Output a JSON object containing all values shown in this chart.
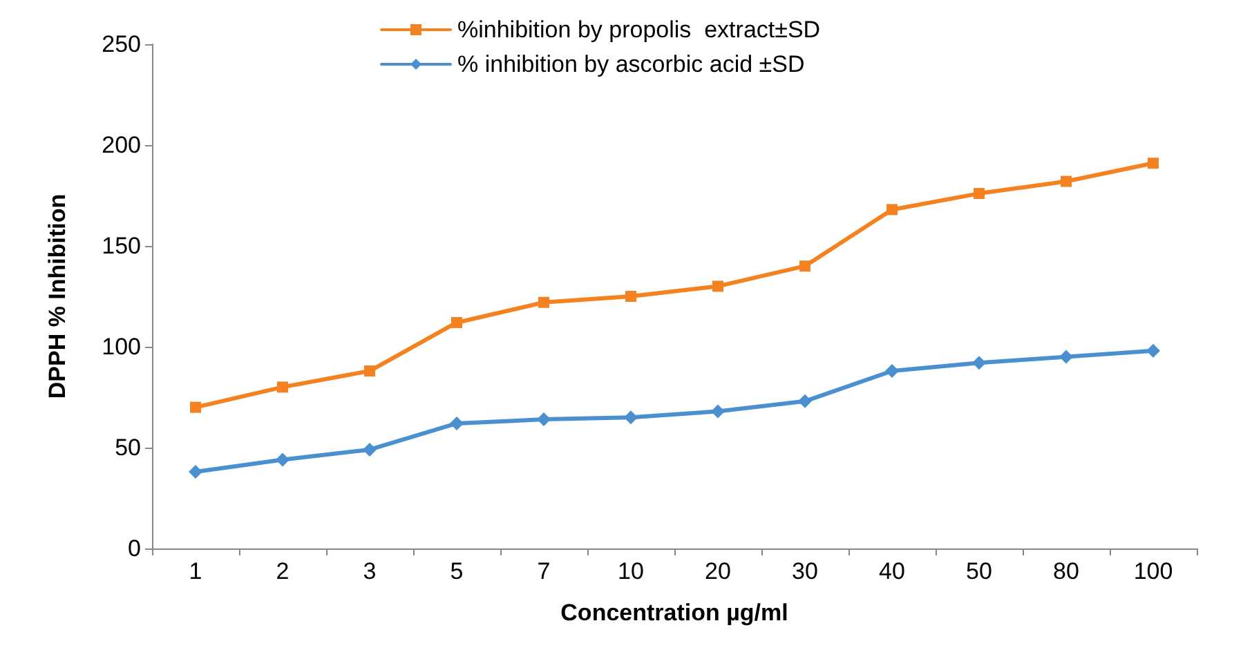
{
  "chart_data": {
    "type": "line",
    "xlabel": "Concentration µg/ml",
    "ylabel": "DPPH % Inhibition",
    "categories": [
      "1",
      "2",
      "3",
      "5",
      "7",
      "10",
      "20",
      "30",
      "40",
      "50",
      "80",
      "100"
    ],
    "series": [
      {
        "name": "%inhibition by propolis  extract±SD",
        "color": "#f58220",
        "marker": "square",
        "values": [
          70,
          80,
          88,
          112,
          122,
          125,
          130,
          140,
          168,
          176,
          182,
          191
        ]
      },
      {
        "name": "% inhibition by ascorbic acid ±SD",
        "color": "#4a90d0",
        "marker": "diamond",
        "values": [
          38,
          44,
          49,
          62,
          64,
          65,
          68,
          73,
          88,
          92,
          95,
          98
        ]
      }
    ],
    "ylim": [
      0,
      250
    ],
    "yticks": [
      0,
      50,
      100,
      150,
      200,
      250
    ],
    "grid": false,
    "legend": "top",
    "line_style": "solid"
  }
}
